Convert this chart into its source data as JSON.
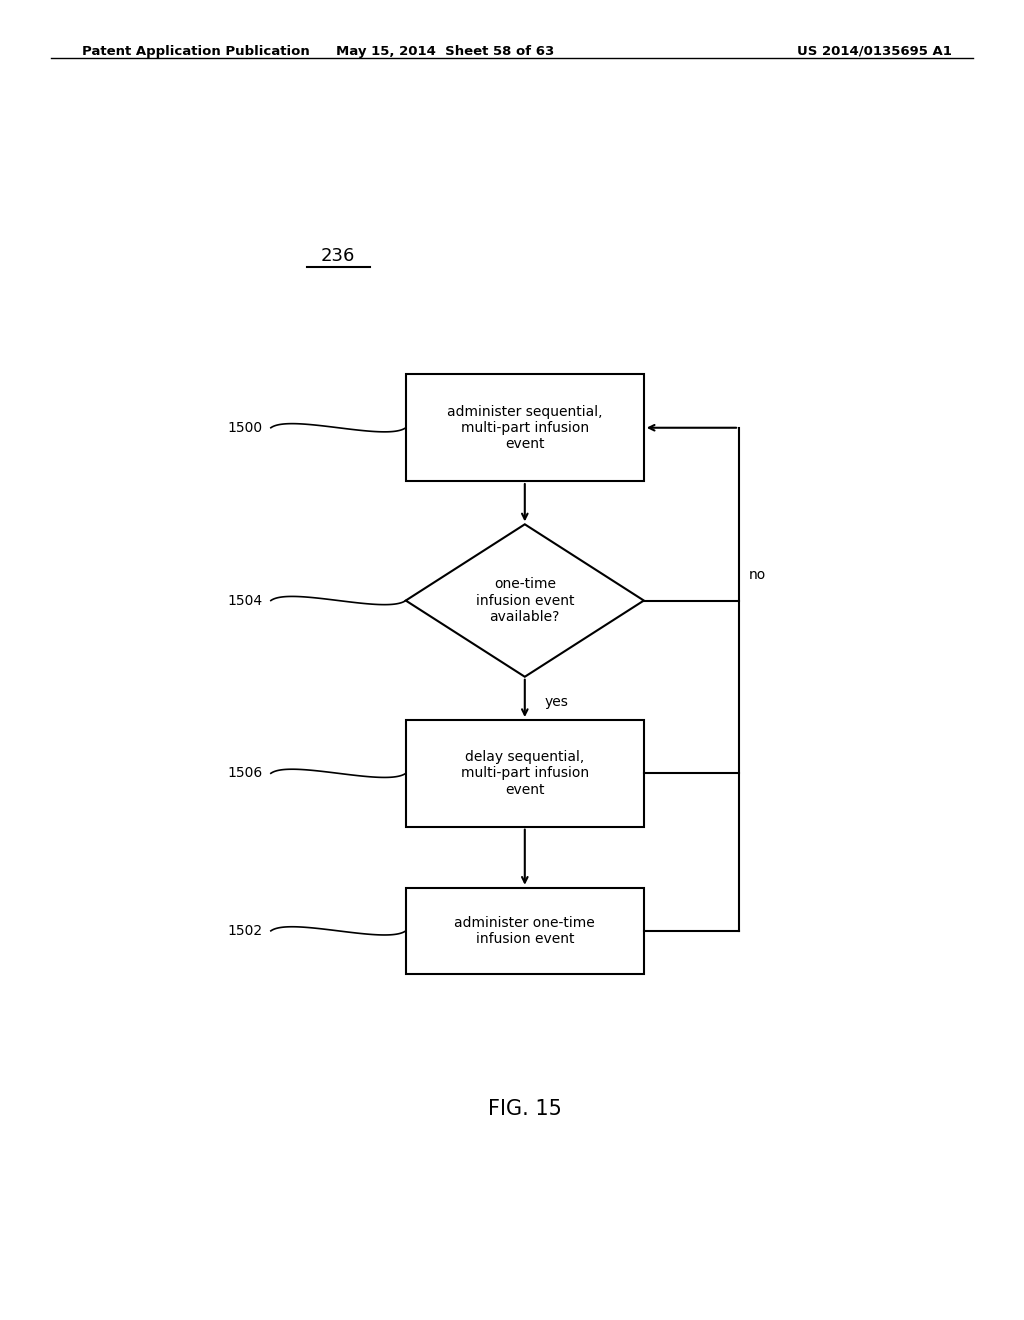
{
  "bg_color": "#ffffff",
  "header_left": "Patent Application Publication",
  "header_mid": "May 15, 2014  Sheet 58 of 63",
  "header_right": "US 2014/0135695 A1",
  "fig_label": "FIG. 15",
  "diagram_label": "236",
  "box1500_label": "administer sequential,\nmulti-part infusion\nevent",
  "box1500_id": "1500",
  "diamond1504_label": "one-time\ninfusion event\navailable?",
  "diamond1504_id": "1504",
  "box1506_label": "delay sequential,\nmulti-part infusion\nevent",
  "box1506_id": "1506",
  "box1502_label": "administer one-time\ninfusion event",
  "box1502_id": "1502",
  "yes_label": "yes",
  "no_label": "no"
}
